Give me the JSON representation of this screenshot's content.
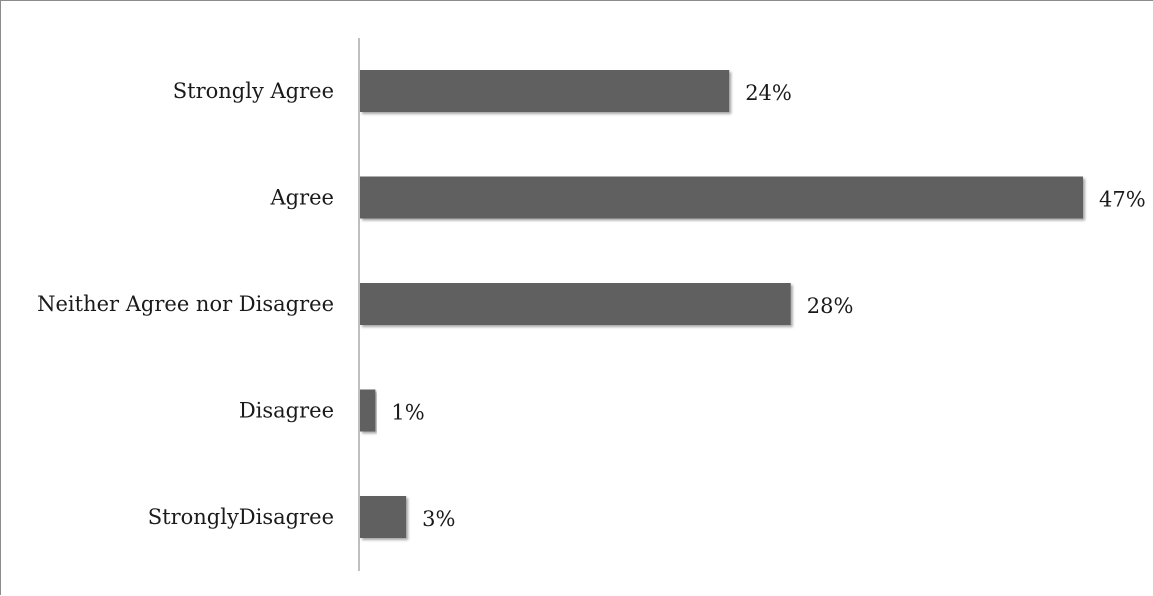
{
  "chart_data": {
    "type": "bar",
    "orientation": "horizontal",
    "categories": [
      "Strongly Agree",
      "Agree",
      "Neither Agree nor Disagree",
      "Disagree",
      "StronglyDisagree"
    ],
    "values": [
      24,
      47,
      28,
      1,
      3
    ],
    "value_labels": [
      "24%",
      "47%",
      "28%",
      "1%",
      "3%"
    ],
    "unit": "%",
    "xlim": [
      0,
      47
    ],
    "bar_color": "#616161",
    "grid": false,
    "legend": "none"
  }
}
